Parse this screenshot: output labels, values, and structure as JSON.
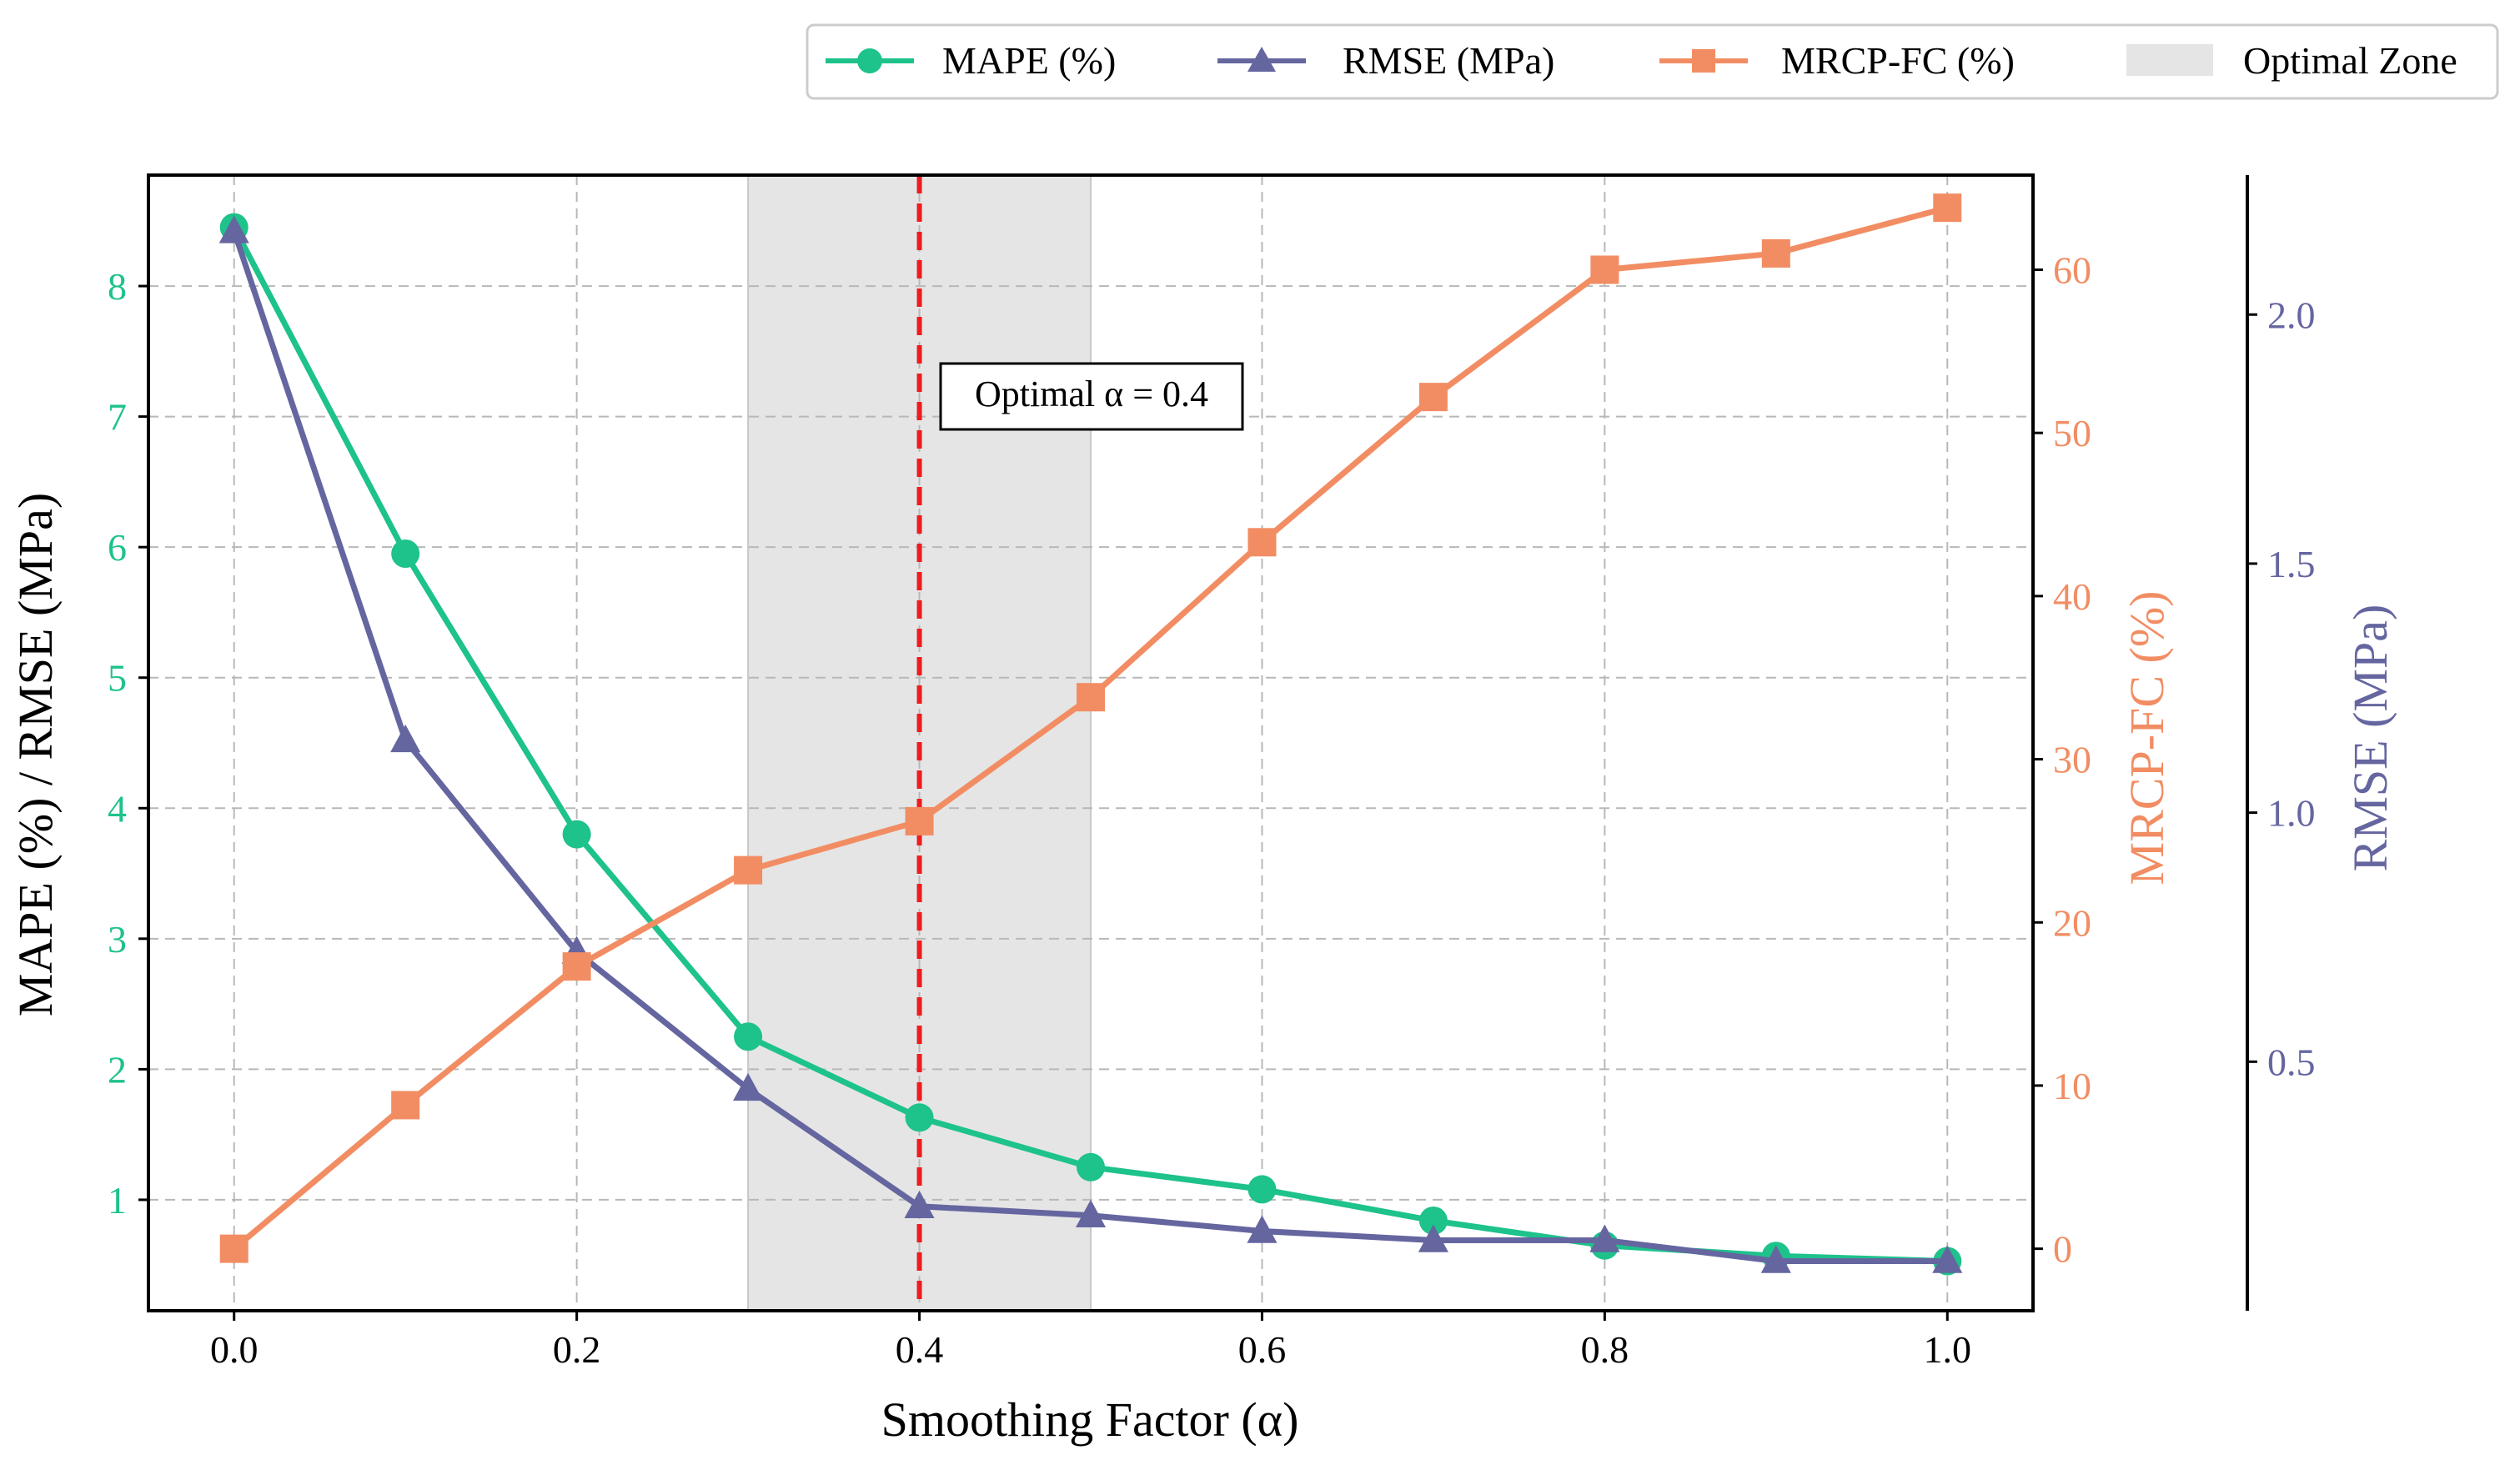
{
  "chart_data": {
    "type": "line",
    "title": "",
    "xlabel": "Smoothing Factor (α)",
    "ylabel_left": "MAPE (%) / RMSE (MPa)",
    "ylabel_right": "MRCP-FC (%)",
    "ylabel_right_outer": "RMSE (MPa)",
    "x": [
      0.0,
      0.1,
      0.2,
      0.3,
      0.4,
      0.5,
      0.6,
      0.7,
      0.8,
      0.9,
      1.0
    ],
    "x_ticks": [
      "0.0",
      "0.2",
      "0.4",
      "0.6",
      "0.8",
      "1.0"
    ],
    "xlim": [
      -0.05,
      1.05
    ],
    "ylim_left": [
      0.15,
      8.85
    ],
    "yticks_left": [
      "1",
      "2",
      "3",
      "4",
      "5",
      "6",
      "7",
      "8"
    ],
    "ylim_right": [
      -3.8,
      65.8
    ],
    "yticks_right": [
      "0",
      "10",
      "20",
      "30",
      "40",
      "50",
      "60"
    ],
    "ylim_outer": [
      0.0,
      2.28
    ],
    "yticks_outer": [
      "0.5",
      "1.0",
      "1.5",
      "2.0"
    ],
    "series": [
      {
        "name": "MAPE (%)",
        "axis": "left",
        "marker": "circle",
        "color": "#1ec28b",
        "values": [
          8.45,
          5.95,
          3.8,
          2.25,
          1.63,
          1.25,
          1.08,
          0.84,
          0.65,
          0.57,
          0.53
        ]
      },
      {
        "name": "RMSE (MPa)",
        "axis": "left",
        "marker": "triangle",
        "color": "#6566a0",
        "values": [
          8.42,
          4.52,
          2.9,
          1.85,
          0.95,
          0.88,
          0.76,
          0.69,
          0.69,
          0.53,
          0.53
        ]
      },
      {
        "name": "MRCP-FC (%)",
        "axis": "right",
        "marker": "square",
        "color": "#f28d63",
        "values": [
          0.0,
          8.8,
          17.3,
          23.2,
          26.2,
          33.8,
          43.3,
          52.2,
          60.0,
          61.0,
          63.8
        ]
      }
    ],
    "optimal_zone": {
      "label": "Optimal Zone",
      "x_range": [
        0.3,
        0.5
      ],
      "color": "#e5e5e5"
    },
    "optimal_line": {
      "x": 0.4,
      "color": "#ee1c1c"
    },
    "annotation": "Optimal α = 0.4",
    "legend_position": "top-right",
    "grid": true
  }
}
